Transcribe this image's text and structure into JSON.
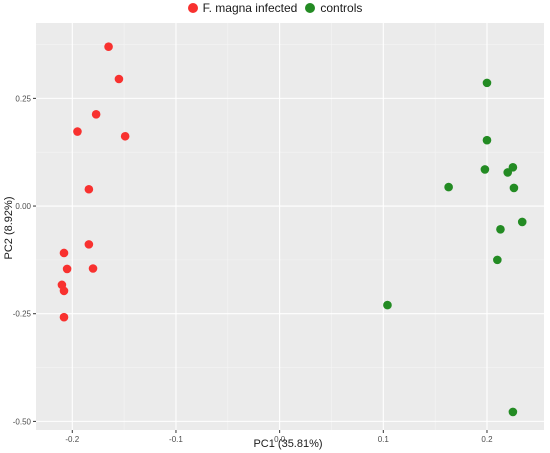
{
  "chart_data": {
    "type": "scatter",
    "xlabel": "PC1 (35.81%)",
    "ylabel": "PC2 (8.92%)",
    "xlim": [
      -0.235,
      0.255
    ],
    "ylim": [
      -0.52,
      0.425
    ],
    "x_ticks": [
      -0.2,
      -0.1,
      0.0,
      0.1,
      0.2
    ],
    "x_tick_labels": [
      "-0.2",
      "-0.1",
      "0.0",
      "0.1",
      "0.2"
    ],
    "y_ticks": [
      -0.5,
      -0.25,
      0.0,
      0.25
    ],
    "y_tick_labels": [
      "-0.50",
      "-0.25",
      "0.00",
      "0.25"
    ],
    "grid": true,
    "legend_position": "top",
    "series": [
      {
        "name": "F. magna infected",
        "color": "#f8312f",
        "points": [
          {
            "x": -0.165,
            "y": 0.37
          },
          {
            "x": -0.155,
            "y": 0.295
          },
          {
            "x": -0.177,
            "y": 0.213
          },
          {
            "x": -0.195,
            "y": 0.173
          },
          {
            "x": -0.149,
            "y": 0.162
          },
          {
            "x": -0.184,
            "y": 0.039
          },
          {
            "x": -0.184,
            "y": -0.089
          },
          {
            "x": -0.208,
            "y": -0.109
          },
          {
            "x": -0.18,
            "y": -0.145
          },
          {
            "x": -0.205,
            "y": -0.146
          },
          {
            "x": -0.21,
            "y": -0.183
          },
          {
            "x": -0.208,
            "y": -0.197
          },
          {
            "x": -0.208,
            "y": -0.258
          }
        ]
      },
      {
        "name": "controls",
        "color": "#238b23",
        "points": [
          {
            "x": 0.2,
            "y": 0.286
          },
          {
            "x": 0.2,
            "y": 0.153
          },
          {
            "x": 0.225,
            "y": 0.09
          },
          {
            "x": 0.198,
            "y": 0.085
          },
          {
            "x": 0.22,
            "y": 0.078
          },
          {
            "x": 0.163,
            "y": 0.044
          },
          {
            "x": 0.226,
            "y": 0.042
          },
          {
            "x": 0.234,
            "y": -0.037
          },
          {
            "x": 0.213,
            "y": -0.054
          },
          {
            "x": 0.21,
            "y": -0.125
          },
          {
            "x": 0.104,
            "y": -0.23
          },
          {
            "x": 0.225,
            "y": -0.478
          }
        ]
      }
    ]
  }
}
